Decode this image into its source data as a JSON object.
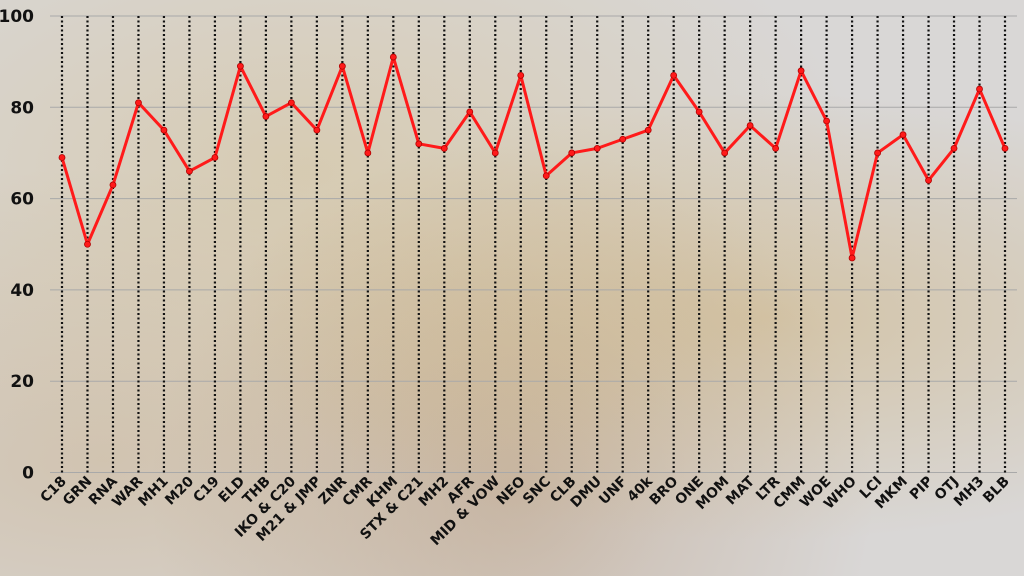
{
  "chart_data": {
    "type": "line",
    "categories": [
      "C18",
      "GRN",
      "RNA",
      "WAR",
      "MH1",
      "M20",
      "C19",
      "ELD",
      "THB",
      "IKO & C20",
      "M21 & JMP",
      "ZNR",
      "CMR",
      "KHM",
      "STX & C21",
      "MH2",
      "AFR",
      "MID & VOW",
      "NEO",
      "SNC",
      "CLB",
      "DMU",
      "UNF",
      "40k",
      "BRO",
      "ONE",
      "MOM",
      "MAT",
      "LTR",
      "CMM",
      "WOE",
      "WHO",
      "LCI",
      "MKM",
      "PIP",
      "OTJ",
      "MH3",
      "BLB"
    ],
    "values": [
      69,
      50,
      63,
      81,
      75,
      66,
      69,
      89,
      78,
      81,
      75,
      89,
      70,
      91,
      72,
      71,
      79,
      70,
      87,
      65,
      70,
      71,
      73,
      75,
      87,
      79,
      70,
      76,
      71,
      88,
      77,
      47,
      70,
      74,
      64,
      71,
      84,
      71
    ],
    "ylim": [
      0,
      100
    ],
    "yticks": [
      0,
      20,
      40,
      60,
      80,
      100
    ],
    "grid": true,
    "line_color": "#ff1a1a",
    "marker": "circle",
    "vertical_gridlines": "dotted-black"
  }
}
